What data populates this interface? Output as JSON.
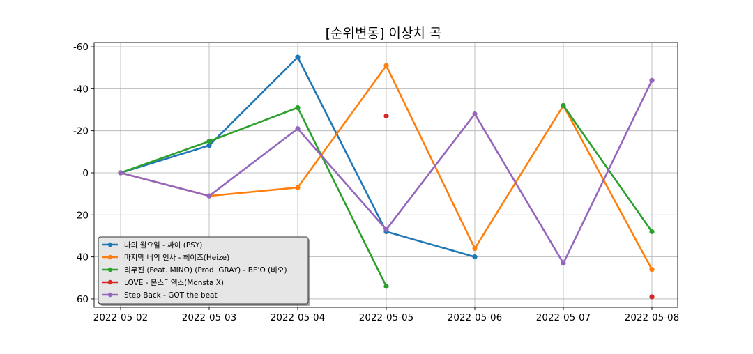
{
  "chart_data": {
    "type": "line",
    "title": "[순위변동] 이상치 곡",
    "xlabel": "",
    "ylabel": "",
    "x": [
      "2022-05-02",
      "2022-05-03",
      "2022-05-04",
      "2022-05-05",
      "2022-05-06",
      "2022-05-07",
      "2022-05-08"
    ],
    "yticks": [
      -60,
      -40,
      -20,
      0,
      20,
      40,
      60
    ],
    "ytick_labels": [
      "-60",
      "-40",
      "-20",
      "0",
      "20",
      "40",
      "60"
    ],
    "ylim": [
      64,
      -62
    ],
    "y_inverted": true,
    "grid": true,
    "legend_position": "lower-left",
    "series": [
      {
        "name": "나의 월요일 - 싸이 (PSY)",
        "color": "#1f77b4",
        "values": [
          0,
          -13,
          -55,
          28,
          40,
          null,
          null
        ]
      },
      {
        "name": "마지막 너의 인사 - 헤이즈(Heize)",
        "color": "#ff7f0e",
        "values": [
          0,
          11,
          7,
          -51,
          36,
          -32,
          46
        ]
      },
      {
        "name": "리무진 (Feat. MINO) (Prod. GRAY) - BE'O (비오)",
        "color": "#2ca02c",
        "values": [
          0,
          -15,
          -31,
          54,
          null,
          -32,
          28
        ]
      },
      {
        "name": "LOVE - 몬스타엑스(Monsta X)",
        "color": "#d62728",
        "values": [
          null,
          null,
          null,
          -27,
          null,
          null,
          59
        ]
      },
      {
        "name": "Step Back - GOT the beat",
        "color": "#9467bd",
        "values": [
          0,
          11,
          -21,
          27,
          -28,
          43,
          -44
        ]
      }
    ]
  }
}
